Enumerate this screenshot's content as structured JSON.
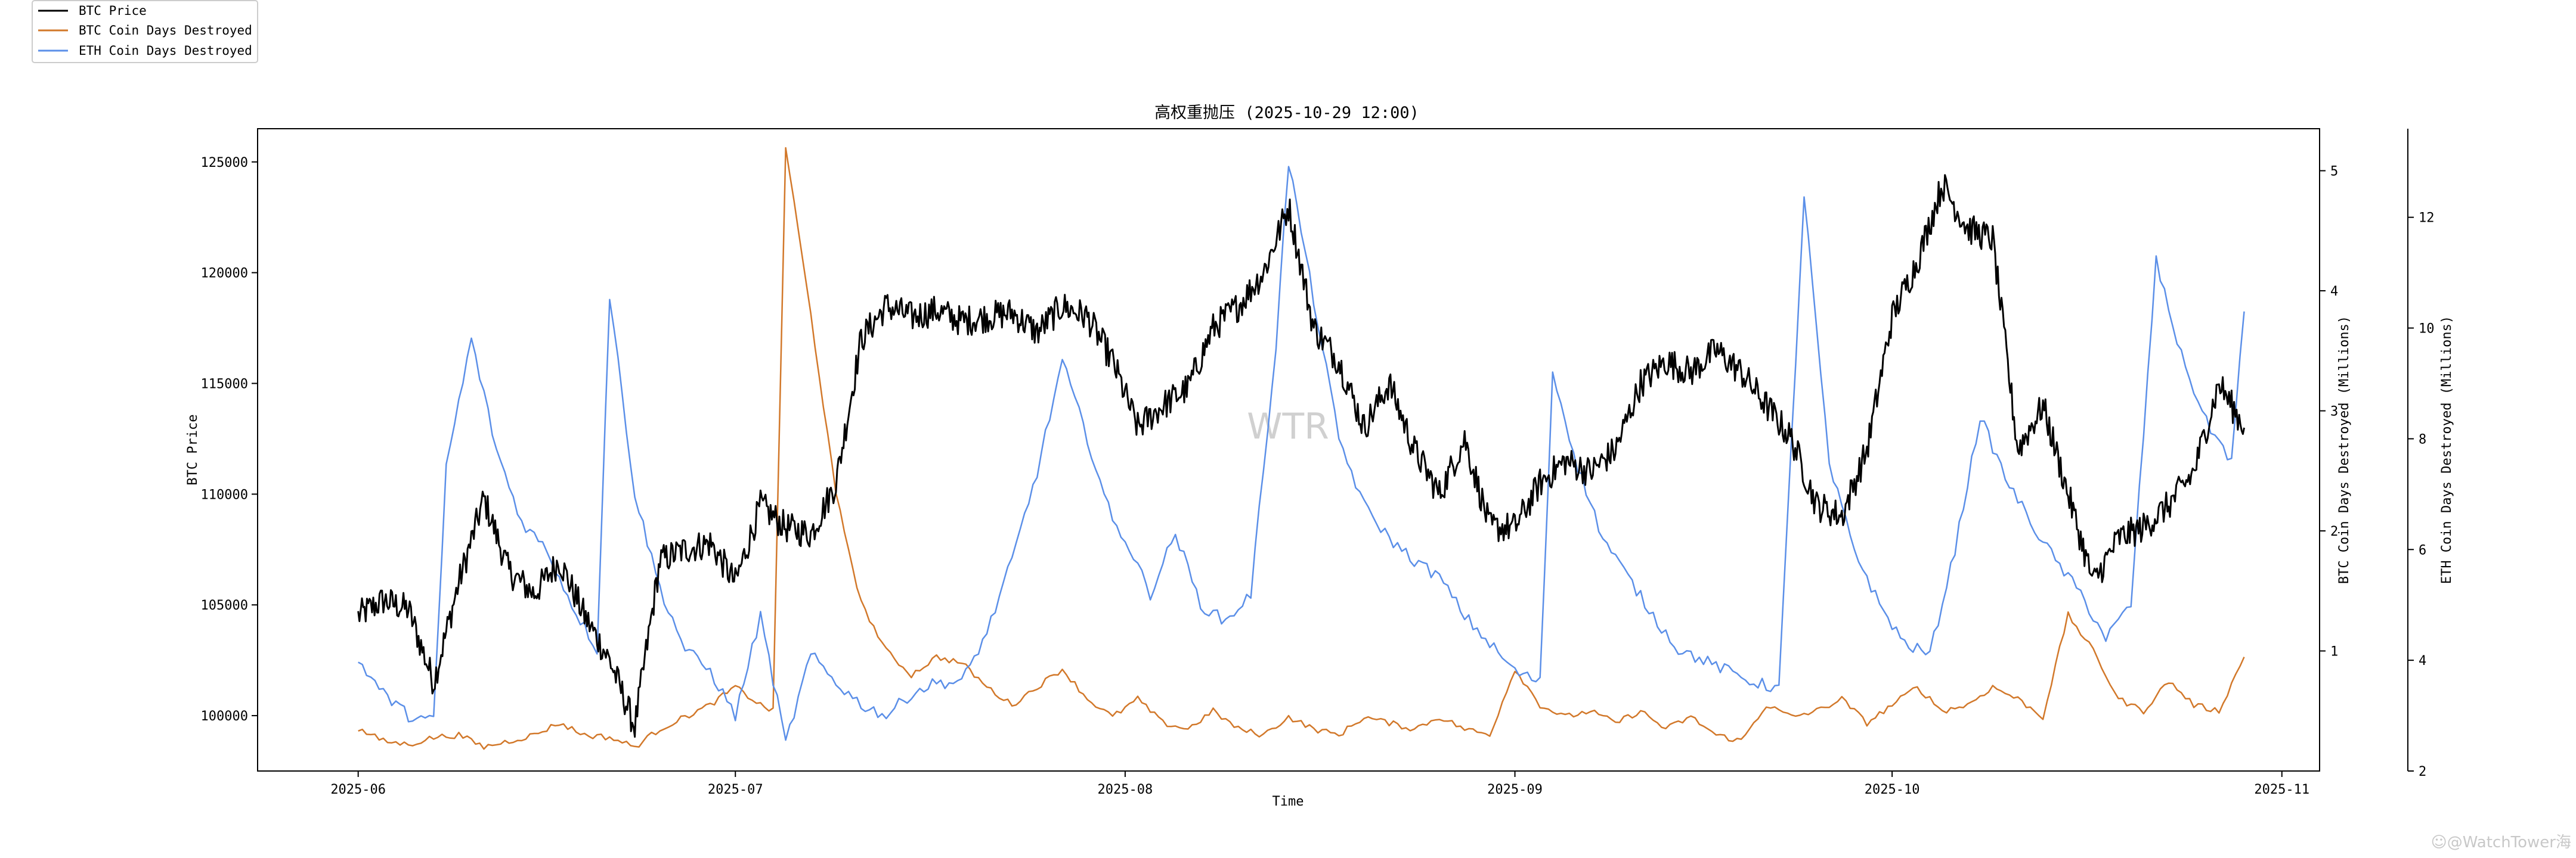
{
  "chart_data": {
    "type": "line",
    "title": "高权重抛压 (2025-10-29 12:00)",
    "xlabel": "Time",
    "y_left_label": "BTC Price",
    "y_right1_label": "BTC Coin Days Destroyed (Millions)",
    "y_right2_label": "ETH Coin Days Destroyed (Millions)",
    "x_range": [
      "2025-05-24",
      "2025-11-04"
    ],
    "x_ticks": [
      "2025-06",
      "2025-07",
      "2025-08",
      "2025-09",
      "2025-10",
      "2025-11"
    ],
    "y_left": {
      "range": [
        97500,
        126500
      ],
      "ticks": [
        "100000",
        "105000",
        "110000",
        "115000",
        "120000",
        "125000"
      ]
    },
    "y_right1": {
      "range": [
        0,
        5.35
      ],
      "ticks": [
        "1",
        "2",
        "3",
        "4",
        "5"
      ]
    },
    "y_right2": {
      "range": [
        2,
        13.6
      ],
      "ticks": [
        "2",
        "4",
        "6",
        "8",
        "10",
        "12"
      ]
    },
    "grid": false,
    "legend_position": "top-left (outside)",
    "colors": {
      "btc_price": "#000000",
      "btc_cdd": "#d2782a",
      "eth_cdd": "#5b8fe8"
    },
    "series": [
      {
        "name": "BTC Price",
        "axis": "left",
        "x": [
          "2025-06-01",
          "2025-06-03",
          "2025-06-05",
          "2025-06-07",
          "2025-06-09",
          "2025-06-11",
          "2025-06-13",
          "2025-06-15",
          "2025-06-17",
          "2025-06-19",
          "2025-06-21",
          "2025-06-23",
          "2025-06-25",
          "2025-06-27",
          "2025-06-29",
          "2025-07-01",
          "2025-07-03",
          "2025-07-05",
          "2025-07-07",
          "2025-07-09",
          "2025-07-11",
          "2025-07-13",
          "2025-07-15",
          "2025-07-17",
          "2025-07-19",
          "2025-07-21",
          "2025-07-23",
          "2025-07-25",
          "2025-07-27",
          "2025-07-29",
          "2025-07-31",
          "2025-08-02",
          "2025-08-04",
          "2025-08-06",
          "2025-08-08",
          "2025-08-10",
          "2025-08-12",
          "2025-08-14",
          "2025-08-16",
          "2025-08-18",
          "2025-08-20",
          "2025-08-22",
          "2025-08-24",
          "2025-08-26",
          "2025-08-28",
          "2025-08-30",
          "2025-09-01",
          "2025-09-03",
          "2025-09-05",
          "2025-09-07",
          "2025-09-09",
          "2025-09-11",
          "2025-09-13",
          "2025-09-15",
          "2025-09-17",
          "2025-09-19",
          "2025-09-21",
          "2025-09-23",
          "2025-09-25",
          "2025-09-27",
          "2025-09-29",
          "2025-10-01",
          "2025-10-03",
          "2025-10-05",
          "2025-10-07",
          "2025-10-09",
          "2025-10-11",
          "2025-10-13",
          "2025-10-15",
          "2025-10-17",
          "2025-10-19",
          "2025-10-21",
          "2025-10-23",
          "2025-10-25",
          "2025-10-27",
          "2025-10-29"
        ],
        "values": [
          104500,
          105200,
          104800,
          101500,
          106000,
          109800,
          106500,
          105500,
          107000,
          104500,
          102500,
          99500,
          107000,
          107500,
          107800,
          106000,
          109500,
          108500,
          108200,
          110500,
          117000,
          118500,
          118000,
          118300,
          117800,
          118000,
          118200,
          117300,
          118500,
          118000,
          116000,
          113000,
          114000,
          114800,
          117500,
          118500,
          120000,
          123000,
          117500,
          116000,
          113000,
          115000,
          112000,
          110000,
          112500,
          108500,
          108500,
          110500,
          111500,
          111000,
          112000,
          115000,
          116000,
          115500,
          116500,
          115500,
          114000,
          112500,
          109500,
          109000,
          112000,
          118000,
          120500,
          124000,
          122000,
          121500,
          112000,
          114000,
          110000,
          106000,
          108000,
          108500,
          109500,
          111000,
          115000,
          113000
        ]
      },
      {
        "name": "BTC Coin Days Destroyed",
        "axis": "right1",
        "x": [
          "2025-06-01",
          "2025-06-03",
          "2025-06-05",
          "2025-06-07",
          "2025-06-09",
          "2025-06-11",
          "2025-06-13",
          "2025-06-15",
          "2025-06-17",
          "2025-06-19",
          "2025-06-21",
          "2025-06-23",
          "2025-06-25",
          "2025-06-27",
          "2025-06-29",
          "2025-07-01",
          "2025-07-03",
          "2025-07-04",
          "2025-07-05",
          "2025-07-07",
          "2025-07-09",
          "2025-07-11",
          "2025-07-13",
          "2025-07-15",
          "2025-07-17",
          "2025-07-19",
          "2025-07-21",
          "2025-07-23",
          "2025-07-25",
          "2025-07-27",
          "2025-07-29",
          "2025-07-31",
          "2025-08-02",
          "2025-08-04",
          "2025-08-06",
          "2025-08-08",
          "2025-08-10",
          "2025-08-12",
          "2025-08-14",
          "2025-08-16",
          "2025-08-18",
          "2025-08-20",
          "2025-08-22",
          "2025-08-24",
          "2025-08-26",
          "2025-08-28",
          "2025-08-30",
          "2025-09-01",
          "2025-09-03",
          "2025-09-05",
          "2025-09-07",
          "2025-09-09",
          "2025-09-11",
          "2025-09-13",
          "2025-09-15",
          "2025-09-17",
          "2025-09-19",
          "2025-09-21",
          "2025-09-23",
          "2025-09-25",
          "2025-09-27",
          "2025-09-29",
          "2025-10-01",
          "2025-10-03",
          "2025-10-05",
          "2025-10-07",
          "2025-10-09",
          "2025-10-11",
          "2025-10-13",
          "2025-10-15",
          "2025-10-17",
          "2025-10-19",
          "2025-10-21",
          "2025-10-23",
          "2025-10-25",
          "2025-10-27",
          "2025-10-29"
        ],
        "values": [
          0.35,
          0.25,
          0.22,
          0.28,
          0.3,
          0.2,
          0.25,
          0.3,
          0.4,
          0.3,
          0.28,
          0.2,
          0.35,
          0.45,
          0.55,
          0.7,
          0.55,
          0.5,
          5.2,
          3.8,
          2.3,
          1.4,
          1.0,
          0.8,
          0.95,
          0.9,
          0.7,
          0.55,
          0.7,
          0.85,
          0.6,
          0.45,
          0.6,
          0.4,
          0.35,
          0.5,
          0.35,
          0.3,
          0.45,
          0.35,
          0.3,
          0.45,
          0.4,
          0.35,
          0.45,
          0.35,
          0.3,
          0.85,
          0.55,
          0.45,
          0.5,
          0.4,
          0.5,
          0.35,
          0.45,
          0.3,
          0.25,
          0.55,
          0.45,
          0.5,
          0.6,
          0.4,
          0.55,
          0.7,
          0.5,
          0.55,
          0.7,
          0.6,
          0.45,
          1.3,
          1.0,
          0.6,
          0.5,
          0.75,
          0.55,
          0.5,
          0.95
        ]
      },
      {
        "name": "ETH Coin Days Destroyed",
        "axis": "right2",
        "x": [
          "2025-06-01",
          "2025-06-03",
          "2025-06-05",
          "2025-06-07",
          "2025-06-08",
          "2025-06-10",
          "2025-06-12",
          "2025-06-14",
          "2025-06-16",
          "2025-06-18",
          "2025-06-20",
          "2025-06-21",
          "2025-06-23",
          "2025-06-25",
          "2025-06-27",
          "2025-06-29",
          "2025-07-01",
          "2025-07-03",
          "2025-07-05",
          "2025-07-07",
          "2025-07-09",
          "2025-07-11",
          "2025-07-13",
          "2025-07-15",
          "2025-07-17",
          "2025-07-19",
          "2025-07-21",
          "2025-07-23",
          "2025-07-25",
          "2025-07-27",
          "2025-07-29",
          "2025-07-31",
          "2025-08-01",
          "2025-08-03",
          "2025-08-05",
          "2025-08-07",
          "2025-08-09",
          "2025-08-11",
          "2025-08-13",
          "2025-08-14",
          "2025-08-16",
          "2025-08-18",
          "2025-08-20",
          "2025-08-22",
          "2025-08-24",
          "2025-08-26",
          "2025-08-28",
          "2025-08-30",
          "2025-09-01",
          "2025-09-03",
          "2025-09-04",
          "2025-09-06",
          "2025-09-08",
          "2025-09-10",
          "2025-09-12",
          "2025-09-14",
          "2025-09-16",
          "2025-09-18",
          "2025-09-20",
          "2025-09-22",
          "2025-09-24",
          "2025-09-26",
          "2025-09-28",
          "2025-09-30",
          "2025-10-02",
          "2025-10-04",
          "2025-10-06",
          "2025-10-08",
          "2025-10-10",
          "2025-10-12",
          "2025-10-14",
          "2025-10-16",
          "2025-10-18",
          "2025-10-20",
          "2025-10-22",
          "2025-10-24",
          "2025-10-26",
          "2025-10-28",
          "2025-10-29"
        ],
        "values": [
          4.0,
          3.4,
          3.0,
          2.9,
          7.5,
          9.8,
          7.8,
          6.5,
          6.0,
          5.0,
          4.2,
          10.6,
          7.0,
          5.3,
          4.2,
          3.8,
          3.0,
          4.8,
          2.5,
          4.1,
          3.6,
          3.2,
          3.0,
          3.4,
          3.6,
          3.6,
          4.5,
          5.8,
          7.4,
          9.4,
          8.0,
          6.5,
          6.2,
          5.2,
          6.3,
          5.0,
          4.7,
          5.2,
          9.7,
          13.0,
          10.5,
          8.0,
          6.8,
          6.2,
          5.8,
          5.5,
          4.8,
          4.3,
          3.8,
          3.6,
          9.2,
          7.5,
          6.2,
          5.5,
          4.8,
          4.2,
          4.0,
          3.8,
          3.6,
          3.5,
          12.4,
          7.5,
          6.0,
          5.0,
          4.3,
          4.1,
          6.0,
          8.4,
          7.3,
          6.5,
          5.8,
          5.2,
          4.4,
          5.0,
          11.2,
          9.5,
          8.3,
          7.6,
          10.3
        ]
      }
    ]
  },
  "legend": {
    "items": [
      "BTC Price",
      "BTC Coin Days Destroyed",
      "ETH Coin Days Destroyed"
    ]
  },
  "watermark": {
    "center": "WTR",
    "corner": "☺@WatchTower海"
  }
}
